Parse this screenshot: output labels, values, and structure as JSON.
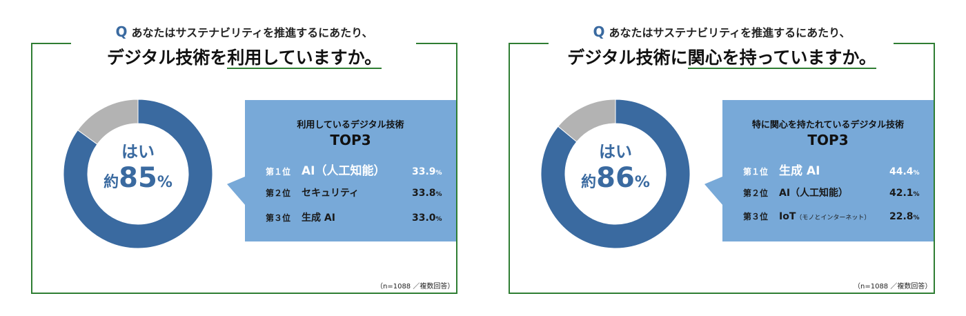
{
  "colors": {
    "accent": "#3a6aa0",
    "rest": "#b3b3b3",
    "box": "#78a9d8",
    "frame": "#2e7d32"
  },
  "chart_data": [
    {
      "type": "pie",
      "question_prefix": "Q",
      "question_line1": "あなたはサステナビリティを推進するにあたり、",
      "question_line2_a": "デジタル技術を",
      "question_line2_b": "利用していますか。",
      "values": [
        85,
        15
      ],
      "center_label": "はい",
      "center_approx": "約",
      "center_value": "85",
      "center_unit": "%",
      "box_title": "利用しているデジタル技術",
      "box_top": "TOP3",
      "ranking": [
        {
          "rank": "第１位",
          "name": "AI（人工知能）",
          "value": "33.9",
          "unit": "%"
        },
        {
          "rank": "第２位",
          "name": "セキュリティ",
          "value": "33.8",
          "unit": "%"
        },
        {
          "rank": "第３位",
          "name": "生成 AI",
          "value": "33.0",
          "unit": "%"
        }
      ],
      "note": "（n=1088 ／複数回答）"
    },
    {
      "type": "pie",
      "question_prefix": "Q",
      "question_line1": "あなたはサステナビリティを推進するにあたり、",
      "question_line2_a": "デジタル技術に",
      "question_line2_b": "関心を持っていますか。",
      "values": [
        86,
        14
      ],
      "center_label": "はい",
      "center_approx": "約",
      "center_value": "86",
      "center_unit": "%",
      "box_title": "特に関心を持たれているデジタル技術",
      "box_top": "TOP3",
      "ranking": [
        {
          "rank": "第１位",
          "name": "生成 AI",
          "value": "44.4",
          "unit": "%"
        },
        {
          "rank": "第２位",
          "name": "AI（人工知能）",
          "value": "42.1",
          "unit": "%"
        },
        {
          "rank": "第３位",
          "name": "IoT",
          "name_sub": "（モノとインターネット）",
          "value": "22.8",
          "unit": "%"
        }
      ],
      "note": "（n=1088 ／複数回答）"
    }
  ]
}
